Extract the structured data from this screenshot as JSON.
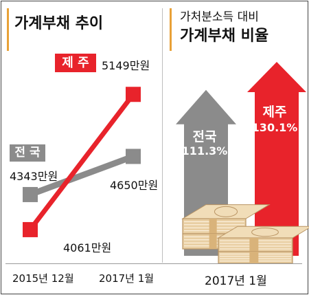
{
  "colors": {
    "jeju": "#e8232b",
    "national": "#8b8b8b",
    "accent": "#e8a137",
    "money": "#e9cfa4",
    "money_dark": "#b99463"
  },
  "left_panel": {
    "title": "가계부채 추이",
    "jeju_label": "제 주",
    "national_label": "전 국",
    "start_label": "2015년 12월",
    "end_label": "2017년 1월"
  },
  "right_panel": {
    "title_line1": "가처분소득 대비",
    "title_line2": "가계부채 비율",
    "date_label": "2017년 1월"
  },
  "chart_data": [
    {
      "type": "line",
      "unit": "만원",
      "categories": [
        "2015년 12월",
        "2017년 1월"
      ],
      "series": [
        {
          "name": "제 주",
          "values": [
            4061,
            5149
          ],
          "value_labels": [
            "4061만원",
            "5149만원"
          ]
        },
        {
          "name": "전 국",
          "values": [
            4343,
            4650
          ],
          "value_labels": [
            "4343만원",
            "4650만원"
          ]
        }
      ],
      "ylim": [
        3950,
        5250
      ]
    },
    {
      "type": "bar",
      "unit": "%",
      "categories": [
        "전국",
        "제주"
      ],
      "values": [
        111.3,
        130.1
      ],
      "value_labels": [
        "111.3%",
        "130.1%"
      ],
      "xlabel": "2017년 1월"
    }
  ]
}
